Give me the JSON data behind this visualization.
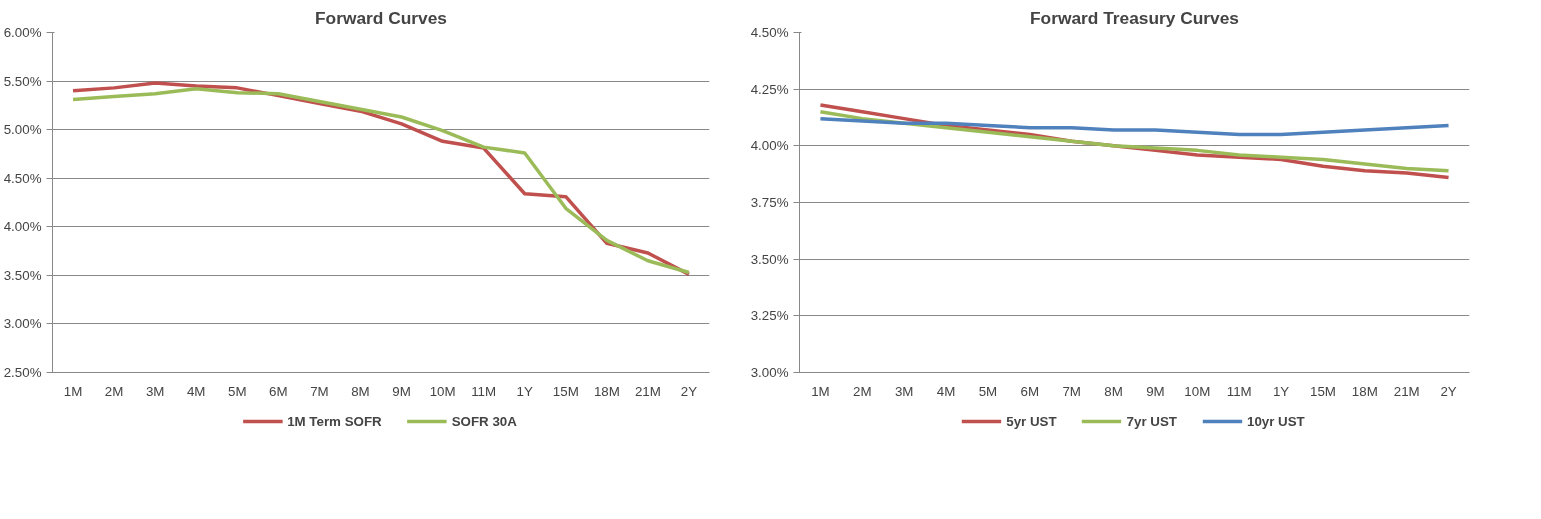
{
  "chart_data": [
    {
      "type": "line",
      "title": "Forward Curves",
      "categories": [
        "1M",
        "2M",
        "3M",
        "4M",
        "5M",
        "6M",
        "7M",
        "8M",
        "9M",
        "10M",
        "11M",
        "1Y",
        "15M",
        "18M",
        "21M",
        "2Y"
      ],
      "series": [
        {
          "name": "1M Term SOFR",
          "color": "#c0504d",
          "values": [
            5.4,
            5.43,
            5.48,
            5.45,
            5.43,
            5.35,
            5.27,
            5.19,
            5.06,
            4.88,
            4.81,
            4.34,
            4.31,
            3.83,
            3.73,
            3.51
          ]
        },
        {
          "name": "SOFR 30A",
          "color": "#9bbb59",
          "values": [
            5.31,
            5.34,
            5.37,
            5.42,
            5.38,
            5.37,
            5.29,
            5.21,
            5.13,
            4.99,
            4.82,
            4.76,
            4.19,
            3.86,
            3.65,
            3.53
          ]
        }
      ],
      "ylim": [
        2.5,
        6.0
      ],
      "yticks": [
        {
          "value": 2.5,
          "label": "2.50%"
        },
        {
          "value": 3.0,
          "label": "3.00%"
        },
        {
          "value": 3.5,
          "label": "3.50%"
        },
        {
          "value": 4.0,
          "label": "4.00%"
        },
        {
          "value": 4.5,
          "label": "4.50%"
        },
        {
          "value": 5.0,
          "label": "5.00%"
        },
        {
          "value": 5.5,
          "label": "5.50%"
        },
        {
          "value": 6.0,
          "label": "6.00%"
        }
      ],
      "grid": "y",
      "legend": "bottom",
      "marker": "none",
      "line_style": "solid"
    },
    {
      "type": "line",
      "title": "Forward Treasury Curves",
      "categories": [
        "1M",
        "2M",
        "3M",
        "4M",
        "5M",
        "6M",
        "7M",
        "8M",
        "9M",
        "10M",
        "11M",
        "1Y",
        "15M",
        "18M",
        "21M",
        "2Y"
      ],
      "series": [
        {
          "name": "5yr UST",
          "color": "#c0504d",
          "values": [
            4.18,
            4.15,
            4.12,
            4.09,
            4.07,
            4.05,
            4.02,
            4.0,
            3.98,
            3.96,
            3.95,
            3.94,
            3.91,
            3.89,
            3.88,
            3.86
          ]
        },
        {
          "name": "7yr UST",
          "color": "#9bbb59",
          "values": [
            4.15,
            4.12,
            4.1,
            4.08,
            4.06,
            4.04,
            4.02,
            4.0,
            3.99,
            3.98,
            3.96,
            3.95,
            3.94,
            3.92,
            3.9,
            3.89
          ]
        },
        {
          "name": "10yr UST",
          "color": "#4f81bd",
          "values": [
            4.12,
            4.11,
            4.1,
            4.1,
            4.09,
            4.08,
            4.08,
            4.07,
            4.07,
            4.06,
            4.05,
            4.05,
            4.06,
            4.07,
            4.08,
            4.09
          ]
        }
      ],
      "ylim": [
        3.0,
        4.5
      ],
      "yticks": [
        {
          "value": 3.0,
          "label": "3.00%"
        },
        {
          "value": 3.25,
          "label": "3.25%"
        },
        {
          "value": 3.5,
          "label": "3.50%"
        },
        {
          "value": 3.75,
          "label": "3.75%"
        },
        {
          "value": 4.0,
          "label": "4.00%"
        },
        {
          "value": 4.25,
          "label": "4.25%"
        },
        {
          "value": 4.5,
          "label": "4.50%"
        }
      ],
      "grid": "y",
      "legend": "bottom",
      "marker": "none",
      "line_style": "solid"
    }
  ]
}
